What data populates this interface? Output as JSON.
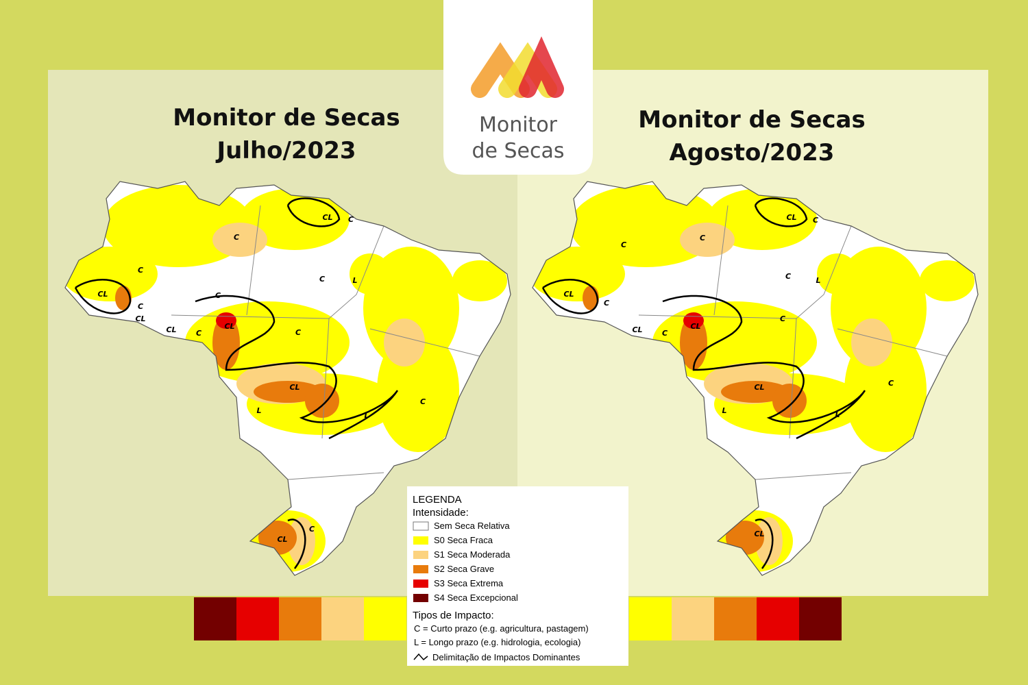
{
  "logo": {
    "line1": "Monitor",
    "line2": "de Secas"
  },
  "maps": [
    {
      "title": [
        "Monitor de Secas",
        "Julho/2023"
      ],
      "labels": [
        "C",
        "C",
        "CL",
        "C",
        "CL",
        "C",
        "CL",
        "C",
        "C",
        "CL",
        "L",
        "L",
        "C",
        "CL",
        "C",
        "CL",
        "C",
        "L",
        "C",
        "CL"
      ]
    },
    {
      "title": [
        "Monitor de Secas",
        "Agosto/2023"
      ],
      "labels": [
        "CL",
        "C",
        "C",
        "C",
        "C",
        "CL",
        "C",
        "CL",
        "CL",
        "C",
        "C",
        "CL",
        "L",
        "L",
        "C",
        "CL",
        "L"
      ]
    }
  ],
  "legend": {
    "title": "LEGENDA",
    "subtitle": "Intensidade:",
    "items": [
      {
        "label": "Sem Seca Relativa",
        "color": "#ffffff"
      },
      {
        "label": "S0 Seca Fraca",
        "color": "#ffff00"
      },
      {
        "label": "S1 Seca Moderada",
        "color": "#fcd37f"
      },
      {
        "label": "S2 Seca Grave",
        "color": "#e87b0c"
      },
      {
        "label": "S3 Seca Extrema",
        "color": "#e60000"
      },
      {
        "label": "S4 Seca Excepcional",
        "color": "#730000"
      }
    ],
    "impact_title": "Tipos de Impacto:",
    "impacts": [
      "C = Curto prazo (e.g. agricultura, pastagem)",
      "L = Longo prazo (e.g. hidrologia, ecologia)"
    ],
    "boundary": "Delimitação de Impactos Dominantes"
  },
  "color_strip": {
    "left": [
      "#730000",
      "#e60000",
      "#e87b0c",
      "#fcd37f",
      "#ffff00"
    ],
    "right": [
      "#ffff00",
      "#fcd37f",
      "#e87b0c",
      "#e60000",
      "#730000"
    ]
  }
}
